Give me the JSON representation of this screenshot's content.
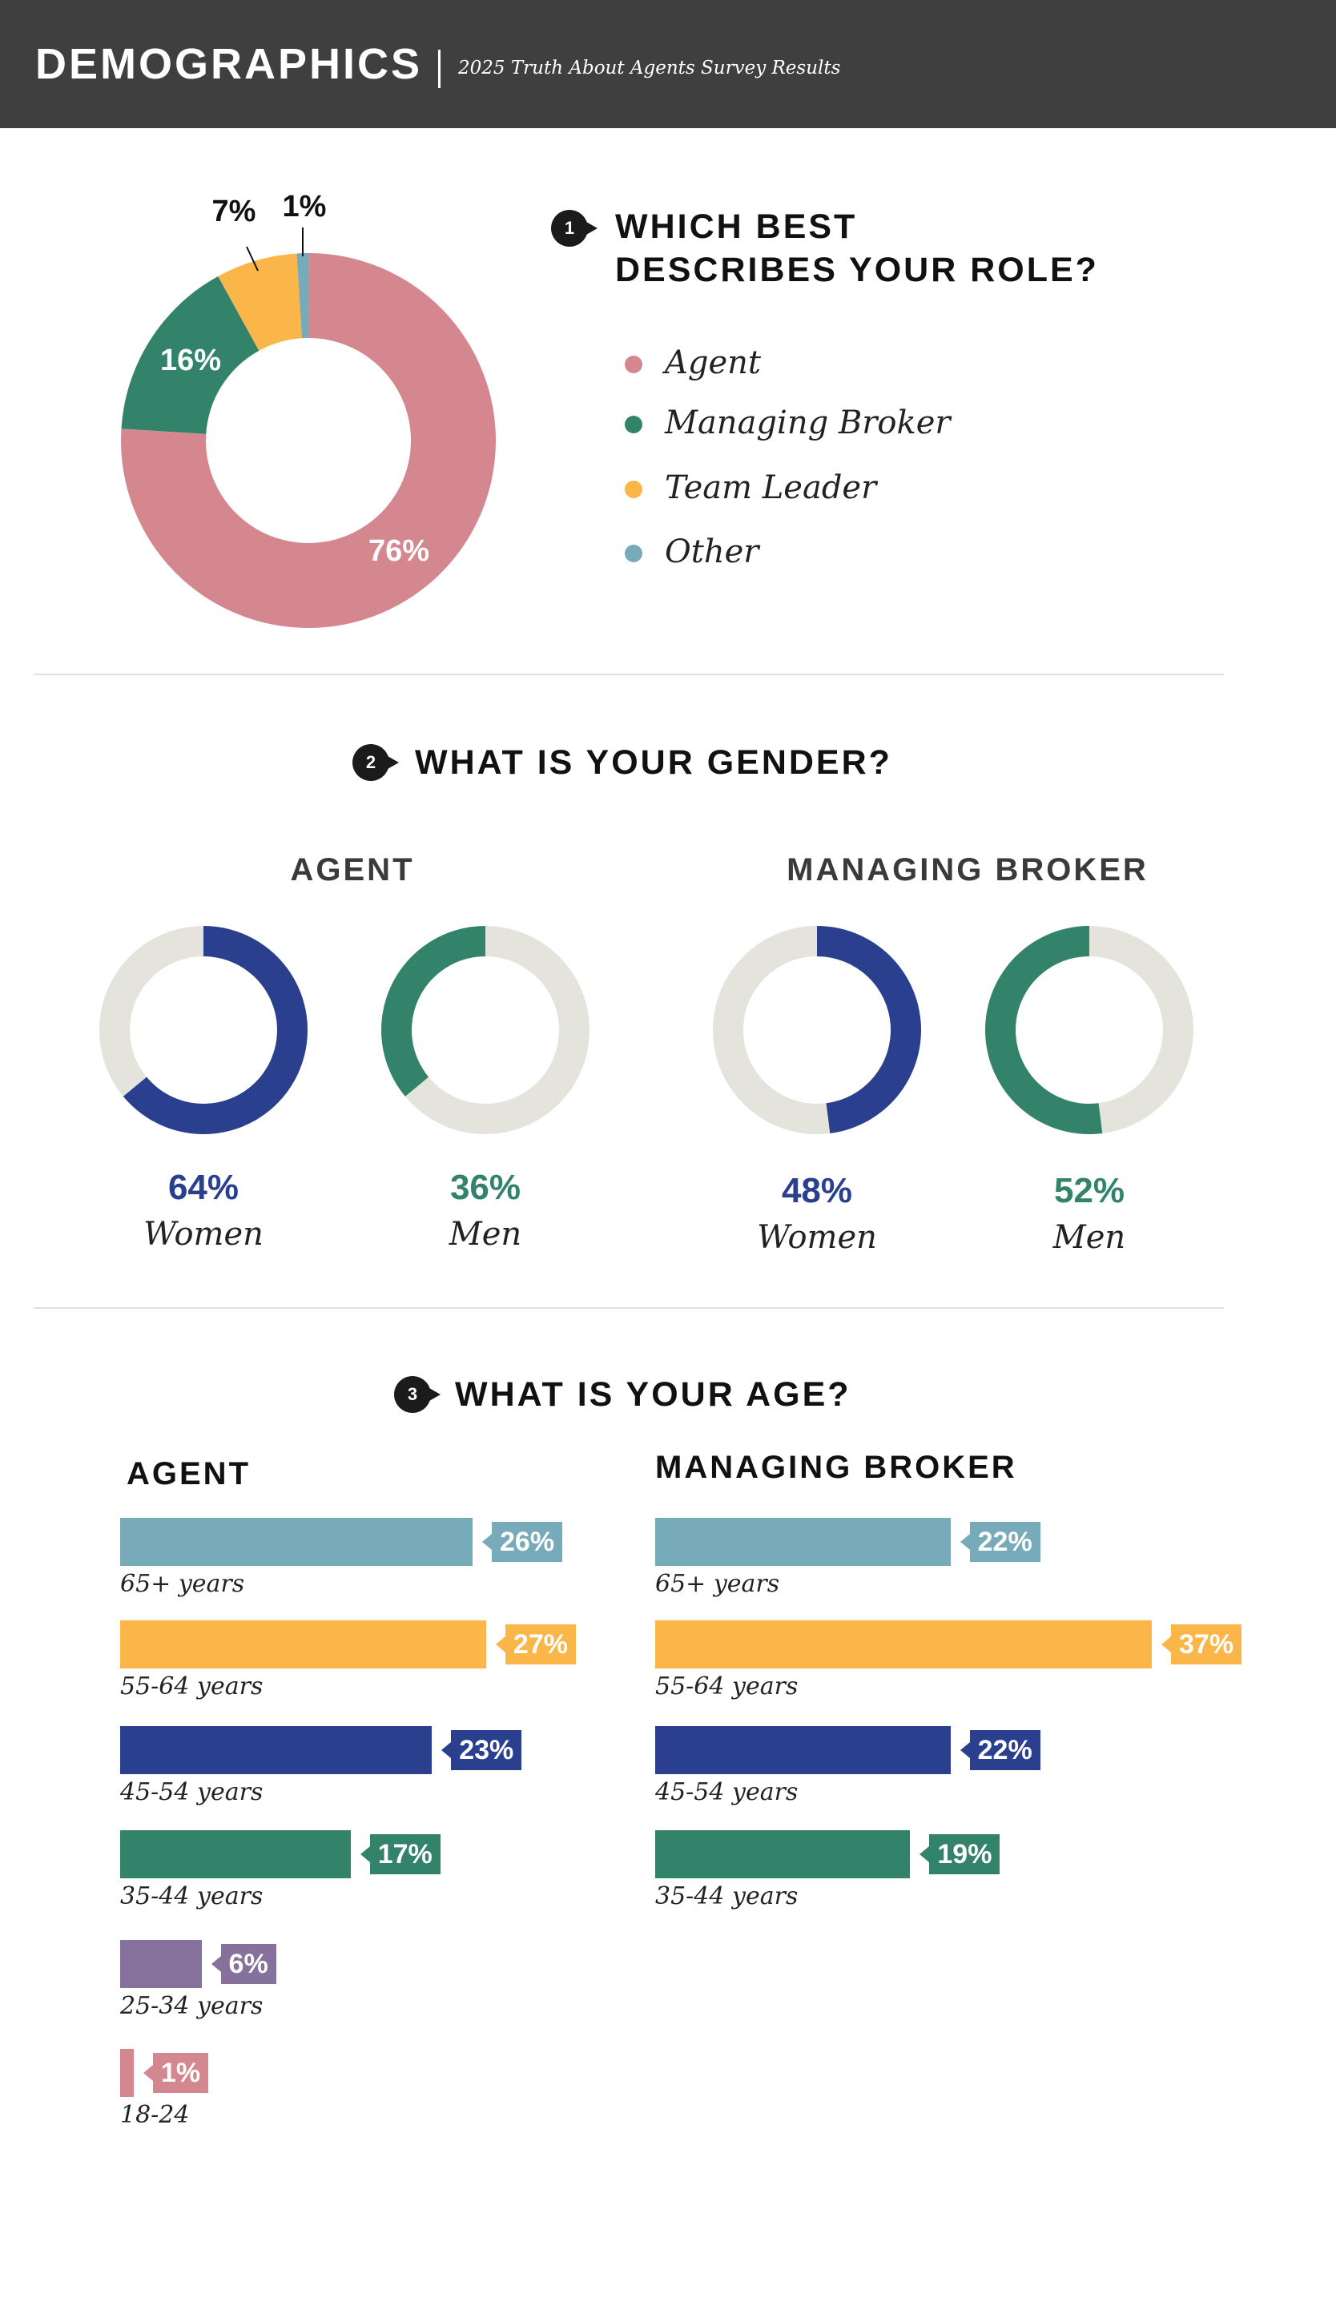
{
  "header": {
    "title": "DEMOGRAPHICS",
    "subtitle": "2025 Truth About Agents Survey Results"
  },
  "colors": {
    "header_bg": "#3f3f3f",
    "agent_pink": "#d4878f",
    "green": "#33836a",
    "yellow": "#fbb64a",
    "teal": "#78abb9",
    "navy": "#2a3f8e",
    "purple": "#85719c",
    "track_gray": "#e4e3dc"
  },
  "q1": {
    "number": "1",
    "title_line1": "WHICH BEST",
    "title_line2": "DESCRIBES YOUR ROLE?"
  },
  "q2": {
    "number": "2",
    "title": "WHAT IS YOUR GENDER?",
    "agent_title": "AGENT",
    "broker_title": "MANAGING BROKER"
  },
  "q3": {
    "number": "3",
    "title": "WHAT IS YOUR AGE?",
    "agent_title": "AGENT",
    "broker_title": "MANAGING BROKER"
  },
  "chart_data": [
    {
      "type": "pie",
      "id": "role",
      "title": "WHICH BEST DESCRIBES YOUR ROLE?",
      "categories": [
        "Agent",
        "Managing Broker",
        "Team Leader",
        "Other"
      ],
      "values": [
        76,
        16,
        7,
        1
      ],
      "labels": [
        "76%",
        "16%",
        "7%",
        "1%"
      ],
      "colors": [
        "#d4878f",
        "#33836a",
        "#fbb64a",
        "#78abb9"
      ],
      "legend": "right"
    },
    {
      "type": "pie",
      "id": "gender",
      "title": "WHAT IS YOUR GENDER?",
      "groups": [
        {
          "name": "AGENT",
          "items": [
            {
              "label": "Women",
              "value": 64,
              "pct": "64%",
              "color": "#2a3f8e"
            },
            {
              "label": "Men",
              "value": 36,
              "pct": "36%",
              "color": "#33836a"
            }
          ]
        },
        {
          "name": "MANAGING BROKER",
          "items": [
            {
              "label": "Women",
              "value": 48,
              "pct": "48%",
              "color": "#2a3f8e"
            },
            {
              "label": "Men",
              "value": 52,
              "pct": "52%",
              "color": "#33836a"
            }
          ]
        }
      ]
    },
    {
      "type": "bar",
      "id": "age",
      "title": "WHAT IS YOUR AGE?",
      "orientation": "horizontal",
      "groups": [
        {
          "name": "AGENT",
          "categories": [
            "65+ years",
            "55-64 years",
            "45-54 years",
            "35-44 years",
            "25-34 years",
            "18-24"
          ],
          "values": [
            26,
            27,
            23,
            17,
            6,
            1
          ],
          "labels": [
            "26%",
            "27%",
            "23%",
            "17%",
            "6%",
            "1%"
          ],
          "colors": [
            "#78abb9",
            "#fbb64a",
            "#2a3f8e",
            "#33836a",
            "#85719c",
            "#d4878f"
          ]
        },
        {
          "name": "MANAGING BROKER",
          "categories": [
            "65+ years",
            "55-64 years",
            "45-54 years",
            "35-44 years"
          ],
          "values": [
            22,
            37,
            22,
            19
          ],
          "labels": [
            "22%",
            "37%",
            "22%",
            "19%"
          ],
          "colors": [
            "#78abb9",
            "#fbb64a",
            "#2a3f8e",
            "#33836a"
          ]
        }
      ]
    }
  ]
}
